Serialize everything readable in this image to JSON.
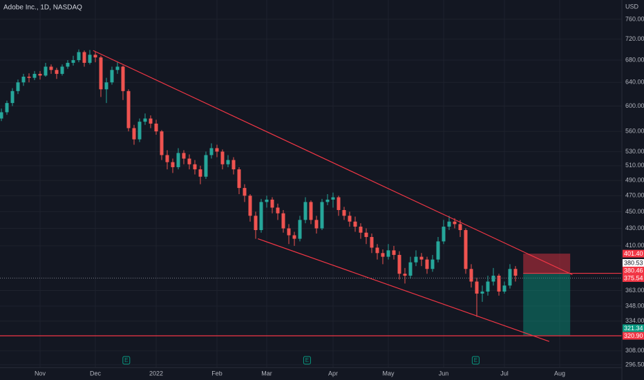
{
  "chart_data": {
    "type": "candlestick",
    "title": "Adobe Inc., 1D, NASDAQ",
    "currency": "USD",
    "categories": [
      null,
      null,
      null,
      null,
      null,
      null,
      null,
      "Nov",
      null,
      null,
      null,
      null,
      null,
      null,
      null,
      null,
      null,
      "Dec",
      null,
      null,
      null,
      null,
      null,
      null,
      null,
      null,
      null,
      null,
      "2022",
      null,
      null,
      null,
      null,
      null,
      null,
      null,
      null,
      null,
      null,
      "Feb",
      null,
      null,
      null,
      null,
      null,
      null,
      null,
      null,
      "Mar",
      null,
      null,
      null,
      null,
      null,
      null,
      null,
      null,
      null,
      null,
      null,
      "Apr",
      null,
      null,
      null,
      null,
      null,
      null,
      null,
      null,
      null,
      "May",
      null,
      null,
      null,
      null,
      null,
      null,
      null,
      null,
      null,
      "Jun",
      null,
      null,
      null,
      null,
      null,
      null,
      null,
      null,
      null,
      null,
      "Jul",
      null,
      null,
      null,
      null,
      null,
      null,
      null,
      null,
      null,
      "Aug",
      null,
      null,
      null,
      null,
      null,
      null,
      null,
      null,
      null,
      null
    ],
    "open": [
      580,
      590,
      605,
      625,
      640,
      650,
      648,
      655,
      652,
      668,
      662,
      655,
      668,
      675,
      680,
      695,
      675,
      690,
      685,
      628,
      640,
      662,
      668,
      625,
      565,
      548,
      575,
      580,
      572,
      560,
      525,
      515,
      508,
      528,
      520,
      512,
      505,
      495,
      525,
      535,
      530,
      512,
      518,
      505,
      480,
      470,
      445,
      428,
      462,
      465,
      455,
      448,
      430,
      422,
      418,
      440,
      462,
      440,
      430,
      462,
      465,
      468,
      452,
      445,
      438,
      432,
      425,
      420,
      408,
      402,
      398,
      405,
      400,
      380,
      378,
      392,
      398,
      395,
      385,
      395,
      415,
      432,
      438,
      435,
      428,
      385,
      372,
      360,
      362,
      372,
      378,
      362,
      368,
      385,
      null,
      null,
      null,
      null,
      null,
      null,
      null,
      null,
      null,
      null,
      null,
      null,
      null,
      null,
      null,
      null,
      null,
      null
    ],
    "high": [
      596,
      609,
      630,
      645,
      655,
      656,
      660,
      660,
      675,
      672,
      666,
      672,
      680,
      688,
      700,
      698,
      699,
      696,
      688,
      648,
      668,
      676,
      670,
      628,
      570,
      580,
      588,
      585,
      578,
      562,
      532,
      520,
      535,
      532,
      526,
      518,
      510,
      530,
      542,
      540,
      533,
      525,
      522,
      508,
      485,
      472,
      450,
      466,
      470,
      468,
      460,
      452,
      435,
      426,
      445,
      468,
      464,
      445,
      466,
      472,
      474,
      470,
      456,
      450,
      444,
      436,
      430,
      424,
      412,
      406,
      412,
      410,
      404,
      386,
      398,
      405,
      402,
      398,
      400,
      420,
      440,
      445,
      442,
      440,
      430,
      390,
      376,
      368,
      378,
      386,
      380,
      372,
      390,
      388,
      null,
      null,
      null,
      null,
      null,
      null,
      null,
      null,
      null,
      null,
      null,
      null,
      null,
      null,
      null,
      null,
      null,
      null
    ],
    "low": [
      576,
      586,
      600,
      620,
      634,
      640,
      644,
      645,
      650,
      655,
      646,
      652,
      664,
      670,
      676,
      668,
      672,
      676,
      615,
      605,
      636,
      655,
      610,
      560,
      540,
      544,
      570,
      565,
      555,
      518,
      505,
      500,
      505,
      512,
      505,
      498,
      485,
      492,
      520,
      522,
      505,
      508,
      498,
      472,
      462,
      438,
      418,
      425,
      455,
      448,
      440,
      425,
      412,
      410,
      415,
      436,
      435,
      424,
      428,
      458,
      455,
      445,
      440,
      432,
      426,
      418,
      412,
      402,
      395,
      390,
      395,
      395,
      374,
      370,
      375,
      388,
      388,
      380,
      382,
      392,
      412,
      428,
      430,
      420,
      380,
      366,
      338,
      352,
      358,
      368,
      358,
      360,
      365,
      372,
      null,
      null,
      null,
      null,
      null,
      null,
      null,
      null,
      null,
      null,
      null,
      null,
      null,
      null,
      null,
      null,
      null,
      null
    ],
    "close": [
      590,
      605,
      625,
      640,
      650,
      648,
      655,
      652,
      668,
      662,
      655,
      668,
      675,
      680,
      695,
      675,
      690,
      685,
      628,
      640,
      662,
      668,
      625,
      565,
      548,
      575,
      580,
      572,
      560,
      525,
      515,
      508,
      528,
      520,
      512,
      505,
      495,
      525,
      535,
      530,
      512,
      518,
      505,
      480,
      470,
      445,
      428,
      462,
      465,
      455,
      448,
      430,
      422,
      418,
      440,
      462,
      440,
      430,
      462,
      465,
      468,
      452,
      445,
      438,
      432,
      425,
      420,
      408,
      402,
      398,
      405,
      400,
      380,
      378,
      392,
      398,
      395,
      385,
      395,
      415,
      432,
      438,
      435,
      428,
      385,
      372,
      360,
      362,
      372,
      378,
      362,
      368,
      385,
      378,
      null,
      null,
      null,
      null,
      null,
      null,
      null,
      null,
      null,
      null,
      null,
      null,
      null,
      null,
      null,
      null,
      null,
      null
    ],
    "up_color": "#26a69a",
    "down_color": "#ef5350",
    "log_scale": true,
    "grid": true,
    "ylim": [
      291,
      801
    ],
    "yticks": [
      {
        "value": 760,
        "label": "760.00"
      },
      {
        "value": 720,
        "label": "720.00"
      },
      {
        "value": 680,
        "label": "680.00"
      },
      {
        "value": 640,
        "label": "640.00"
      },
      {
        "value": 600,
        "label": "600.00"
      },
      {
        "value": 560,
        "label": "560.00"
      },
      {
        "value": 530,
        "label": "530.00"
      },
      {
        "value": 510,
        "label": "510.00"
      },
      {
        "value": 490,
        "label": "490.00"
      },
      {
        "value": 470,
        "label": "470.00"
      },
      {
        "value": 450,
        "label": "450.00"
      },
      {
        "value": 430,
        "label": "430.00"
      },
      {
        "value": 410,
        "label": "410.00"
      },
      {
        "value": 363,
        "label": "363.00"
      },
      {
        "value": 348,
        "label": "348.00"
      },
      {
        "value": 334,
        "label": "334.00"
      },
      {
        "value": 308,
        "label": "308.00"
      },
      {
        "value": 296.5,
        "label": "296.50"
      }
    ],
    "trendlines": [
      {
        "color": "#f23645",
        "points": [
          [
            16.6,
            698
          ],
          [
            103.3,
            379
          ]
        ]
      },
      {
        "color": "#f23645",
        "points": [
          [
            46.4,
            418
          ],
          [
            99.1,
            316
          ]
        ]
      }
    ],
    "hlines": [
      {
        "value": 320.9,
        "color": "#f23645"
      }
    ],
    "current_price": 375.54,
    "position": {
      "entry": 380.46,
      "stop": 401.4,
      "target": 321.34,
      "start": 94.4,
      "end": 102.9
    },
    "price_labels": [
      {
        "value": 401.4,
        "label": "401.40",
        "color": "#f23645"
      },
      {
        "value": 380.53,
        "label": "380.53",
        "color": "#ffffff"
      },
      {
        "value": 380.46,
        "label": "380.46",
        "color": "#f23645"
      },
      {
        "value": 375.54,
        "label": "375.54",
        "color": "#f23645"
      },
      {
        "value": 321.34,
        "label": "321.34",
        "color": "#089981"
      },
      {
        "value": 320.9,
        "label": "320.90",
        "color": "#f23645"
      }
    ],
    "events": [
      {
        "label": "E",
        "at": 22.6
      },
      {
        "label": "E",
        "at": 55.3
      },
      {
        "label": "E",
        "at": 85.8
      }
    ]
  }
}
